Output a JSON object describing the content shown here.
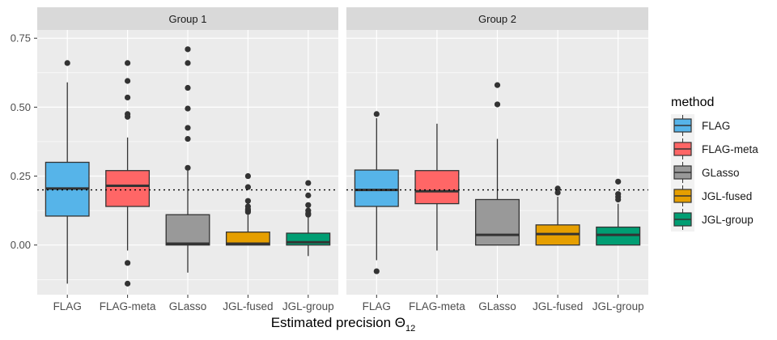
{
  "chart_data": {
    "type": "boxplot",
    "xlabel": "Estimated precision Θ",
    "xlabel_subscript": "12",
    "ylabel": "",
    "ylim": [
      -0.18,
      0.78
    ],
    "y_ticks": [
      0.0,
      0.25,
      0.5,
      0.75
    ],
    "y_tick_labels": [
      "0.00",
      "0.25",
      "0.50",
      "0.75"
    ],
    "reference_line": 0.2,
    "grid": true,
    "legend": {
      "title": "method",
      "position": "right",
      "entries": [
        {
          "label": "FLAG",
          "color": "#56B4E9"
        },
        {
          "label": "FLAG-meta",
          "color": "#FF6666"
        },
        {
          "label": "GLasso",
          "color": "#999999"
        },
        {
          "label": "JGL-fused",
          "color": "#E69F00"
        },
        {
          "label": "JGL-group",
          "color": "#009E73"
        }
      ]
    },
    "categories": [
      "FLAG",
      "FLAG-meta",
      "GLasso",
      "JGL-fused",
      "JGL-group"
    ],
    "panels": [
      {
        "title": "Group 1",
        "boxes": [
          {
            "method": "FLAG",
            "lower_whisker": -0.14,
            "q1": 0.105,
            "median": 0.205,
            "q3": 0.3,
            "upper_whisker": 0.59,
            "outliers": [
              0.66
            ]
          },
          {
            "method": "FLAG-meta",
            "lower_whisker": -0.02,
            "q1": 0.14,
            "median": 0.215,
            "q3": 0.27,
            "upper_whisker": 0.39,
            "outliers": [
              0.66,
              0.595,
              0.535,
              0.475,
              0.465,
              -0.065,
              -0.14
            ]
          },
          {
            "method": "GLasso",
            "lower_whisker": -0.1,
            "q1": 0.0,
            "median": 0.005,
            "q3": 0.11,
            "upper_whisker": 0.27,
            "outliers": [
              0.71,
              0.66,
              0.57,
              0.495,
              0.425,
              0.385,
              0.28
            ]
          },
          {
            "method": "JGL-fused",
            "lower_whisker": 0.0,
            "q1": 0.0,
            "median": 0.005,
            "q3": 0.047,
            "upper_whisker": 0.11,
            "outliers": [
              0.25,
              0.21,
              0.16,
              0.14,
              0.13,
              0.125,
              0.12
            ]
          },
          {
            "method": "JGL-group",
            "lower_whisker": -0.04,
            "q1": 0.0,
            "median": 0.01,
            "q3": 0.043,
            "upper_whisker": 0.1,
            "outliers": [
              0.225,
              0.18,
              0.145,
              0.125,
              0.115,
              0.11
            ]
          }
        ]
      },
      {
        "title": "Group 2",
        "boxes": [
          {
            "method": "FLAG",
            "lower_whisker": -0.055,
            "q1": 0.14,
            "median": 0.2,
            "q3": 0.272,
            "upper_whisker": 0.46,
            "outliers": [
              0.475,
              -0.095
            ]
          },
          {
            "method": "FLAG-meta",
            "lower_whisker": -0.02,
            "q1": 0.15,
            "median": 0.195,
            "q3": 0.27,
            "upper_whisker": 0.44,
            "outliers": []
          },
          {
            "method": "GLasso",
            "lower_whisker": 0.0,
            "q1": 0.0,
            "median": 0.037,
            "q3": 0.165,
            "upper_whisker": 0.385,
            "outliers": [
              0.58,
              0.51
            ]
          },
          {
            "method": "JGL-fused",
            "lower_whisker": 0.0,
            "q1": 0.0,
            "median": 0.04,
            "q3": 0.073,
            "upper_whisker": 0.175,
            "outliers": [
              0.205,
              0.19
            ]
          },
          {
            "method": "JGL-group",
            "lower_whisker": 0.0,
            "q1": 0.0,
            "median": 0.037,
            "q3": 0.065,
            "upper_whisker": 0.15,
            "outliers": [
              0.23,
              0.185,
              0.175,
              0.165
            ]
          }
        ]
      }
    ]
  }
}
